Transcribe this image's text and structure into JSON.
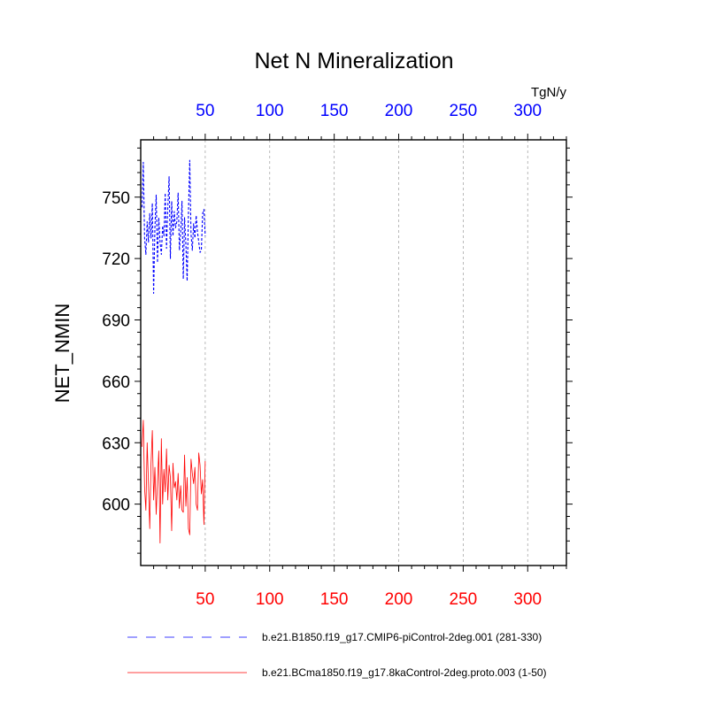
{
  "chart_data": {
    "type": "line",
    "title": "Net N Mineralization",
    "units": "TgN/y",
    "ylabel": "NET_NMIN",
    "xlim": [
      0,
      330
    ],
    "ylim": [
      570,
      778
    ],
    "x_ticks": [
      50,
      100,
      150,
      200,
      250,
      300
    ],
    "y_ticks": [
      600,
      630,
      660,
      690,
      720,
      750
    ],
    "y_tick_labels": [
      "600",
      "630",
      "660",
      "690",
      "720",
      "750"
    ],
    "top_axis": {
      "color": "#0000ff",
      "tick_labels": [
        "50",
        "100",
        "150",
        "200",
        "250",
        "300"
      ]
    },
    "bottom_axis": {
      "color": "#ff0000",
      "tick_labels": [
        "50",
        "100",
        "150",
        "200",
        "250",
        "300"
      ]
    },
    "grid": "dashed vertical at major x ticks",
    "series": [
      {
        "name": "b.e21.B1850.f19_g17.CMIP6-piControl-2deg.001 (281-330)",
        "color": "#0000ff",
        "style": "dashed",
        "x": [
          1,
          2,
          3,
          4,
          5,
          6,
          7,
          8,
          9,
          10,
          11,
          12,
          13,
          14,
          15,
          16,
          17,
          18,
          19,
          20,
          21,
          22,
          23,
          24,
          25,
          26,
          27,
          28,
          29,
          30,
          31,
          32,
          33,
          34,
          35,
          36,
          37,
          38,
          39,
          40,
          41,
          42,
          43,
          44,
          45,
          46,
          47,
          48,
          49,
          50
        ],
        "values": [
          745,
          767,
          730,
          722,
          738,
          728,
          742,
          730,
          747,
          703,
          735,
          751,
          718,
          740,
          728,
          722,
          736,
          731,
          752,
          725,
          745,
          760,
          720,
          748,
          731,
          743,
          735,
          738,
          752,
          724,
          733,
          748,
          710,
          740,
          727,
          709,
          742,
          768,
          732,
          724,
          737,
          730,
          741,
          733,
          728,
          723,
          724,
          742,
          744,
          731
        ]
      },
      {
        "name": "b.e21.BCma1850.f19_g17.8kaControl-2deg.proto.003 (1-50)",
        "color": "#ff0000",
        "style": "solid",
        "x": [
          1,
          2,
          3,
          4,
          5,
          6,
          7,
          8,
          9,
          10,
          11,
          12,
          13,
          14,
          15,
          16,
          17,
          18,
          19,
          20,
          21,
          22,
          23,
          24,
          25,
          26,
          27,
          28,
          29,
          30,
          31,
          32,
          33,
          34,
          35,
          36,
          37,
          38,
          39,
          40,
          41,
          42,
          43,
          44,
          45,
          46,
          47,
          48,
          49,
          50
        ],
        "values": [
          628,
          641,
          608,
          597,
          630,
          610,
          588,
          620,
          636,
          602,
          618,
          595,
          611,
          626,
          581,
          632,
          600,
          617,
          606,
          627,
          602,
          619,
          613,
          587,
          620,
          608,
          611,
          602,
          615,
          598,
          609,
          597,
          596,
          624,
          599,
          613,
          588,
          585,
          622,
          615,
          610,
          618,
          600,
          597,
          625,
          619,
          605,
          612,
          590,
          621
        ]
      }
    ]
  }
}
